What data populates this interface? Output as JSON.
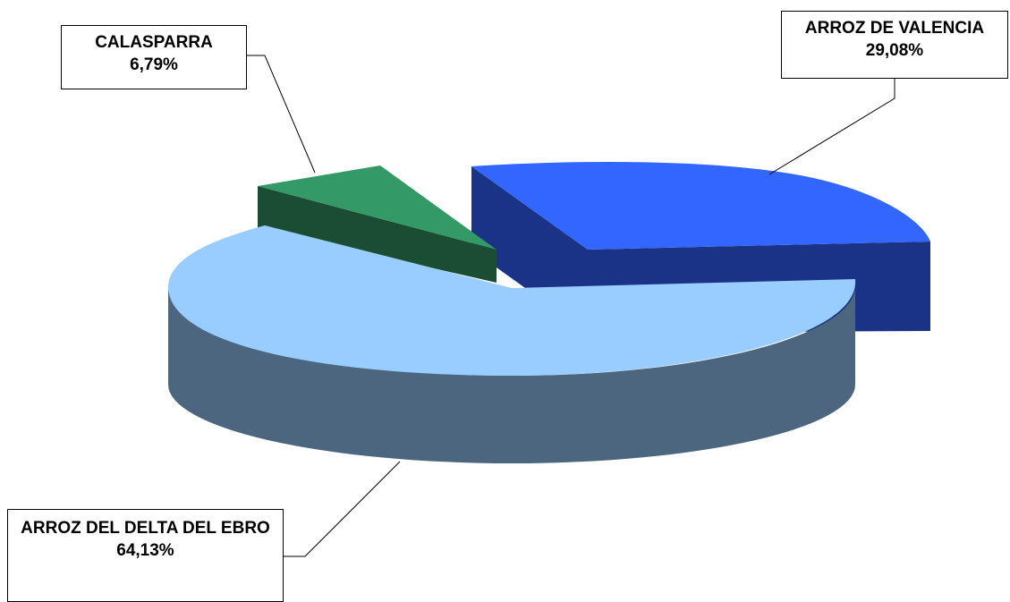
{
  "chart_data": {
    "type": "pie",
    "style": "3d-exploded",
    "categories": [
      "ARROZ DE VALENCIA",
      "CALASPARRA",
      "ARROZ DEL DELTA DEL EBRO"
    ],
    "values": [
      29.08,
      6.79,
      64.13
    ],
    "unit": "%",
    "labels": [
      {
        "name": "ARROZ DE VALENCIA",
        "value_text": "29,08%"
      },
      {
        "name": "CALASPARRA",
        "value_text": "6,79%"
      },
      {
        "name": "ARROZ DEL DELTA DEL EBRO",
        "value_text": "64,13%"
      }
    ],
    "colors": {
      "valencia_top": "#3366ff",
      "valencia_side": "#1a3386",
      "calasparra_top": "#339966",
      "calasparra_side": "#1a4d33",
      "delta_top": "#99ccff",
      "delta_side": "#4d6680"
    },
    "legend": "none",
    "title": ""
  }
}
